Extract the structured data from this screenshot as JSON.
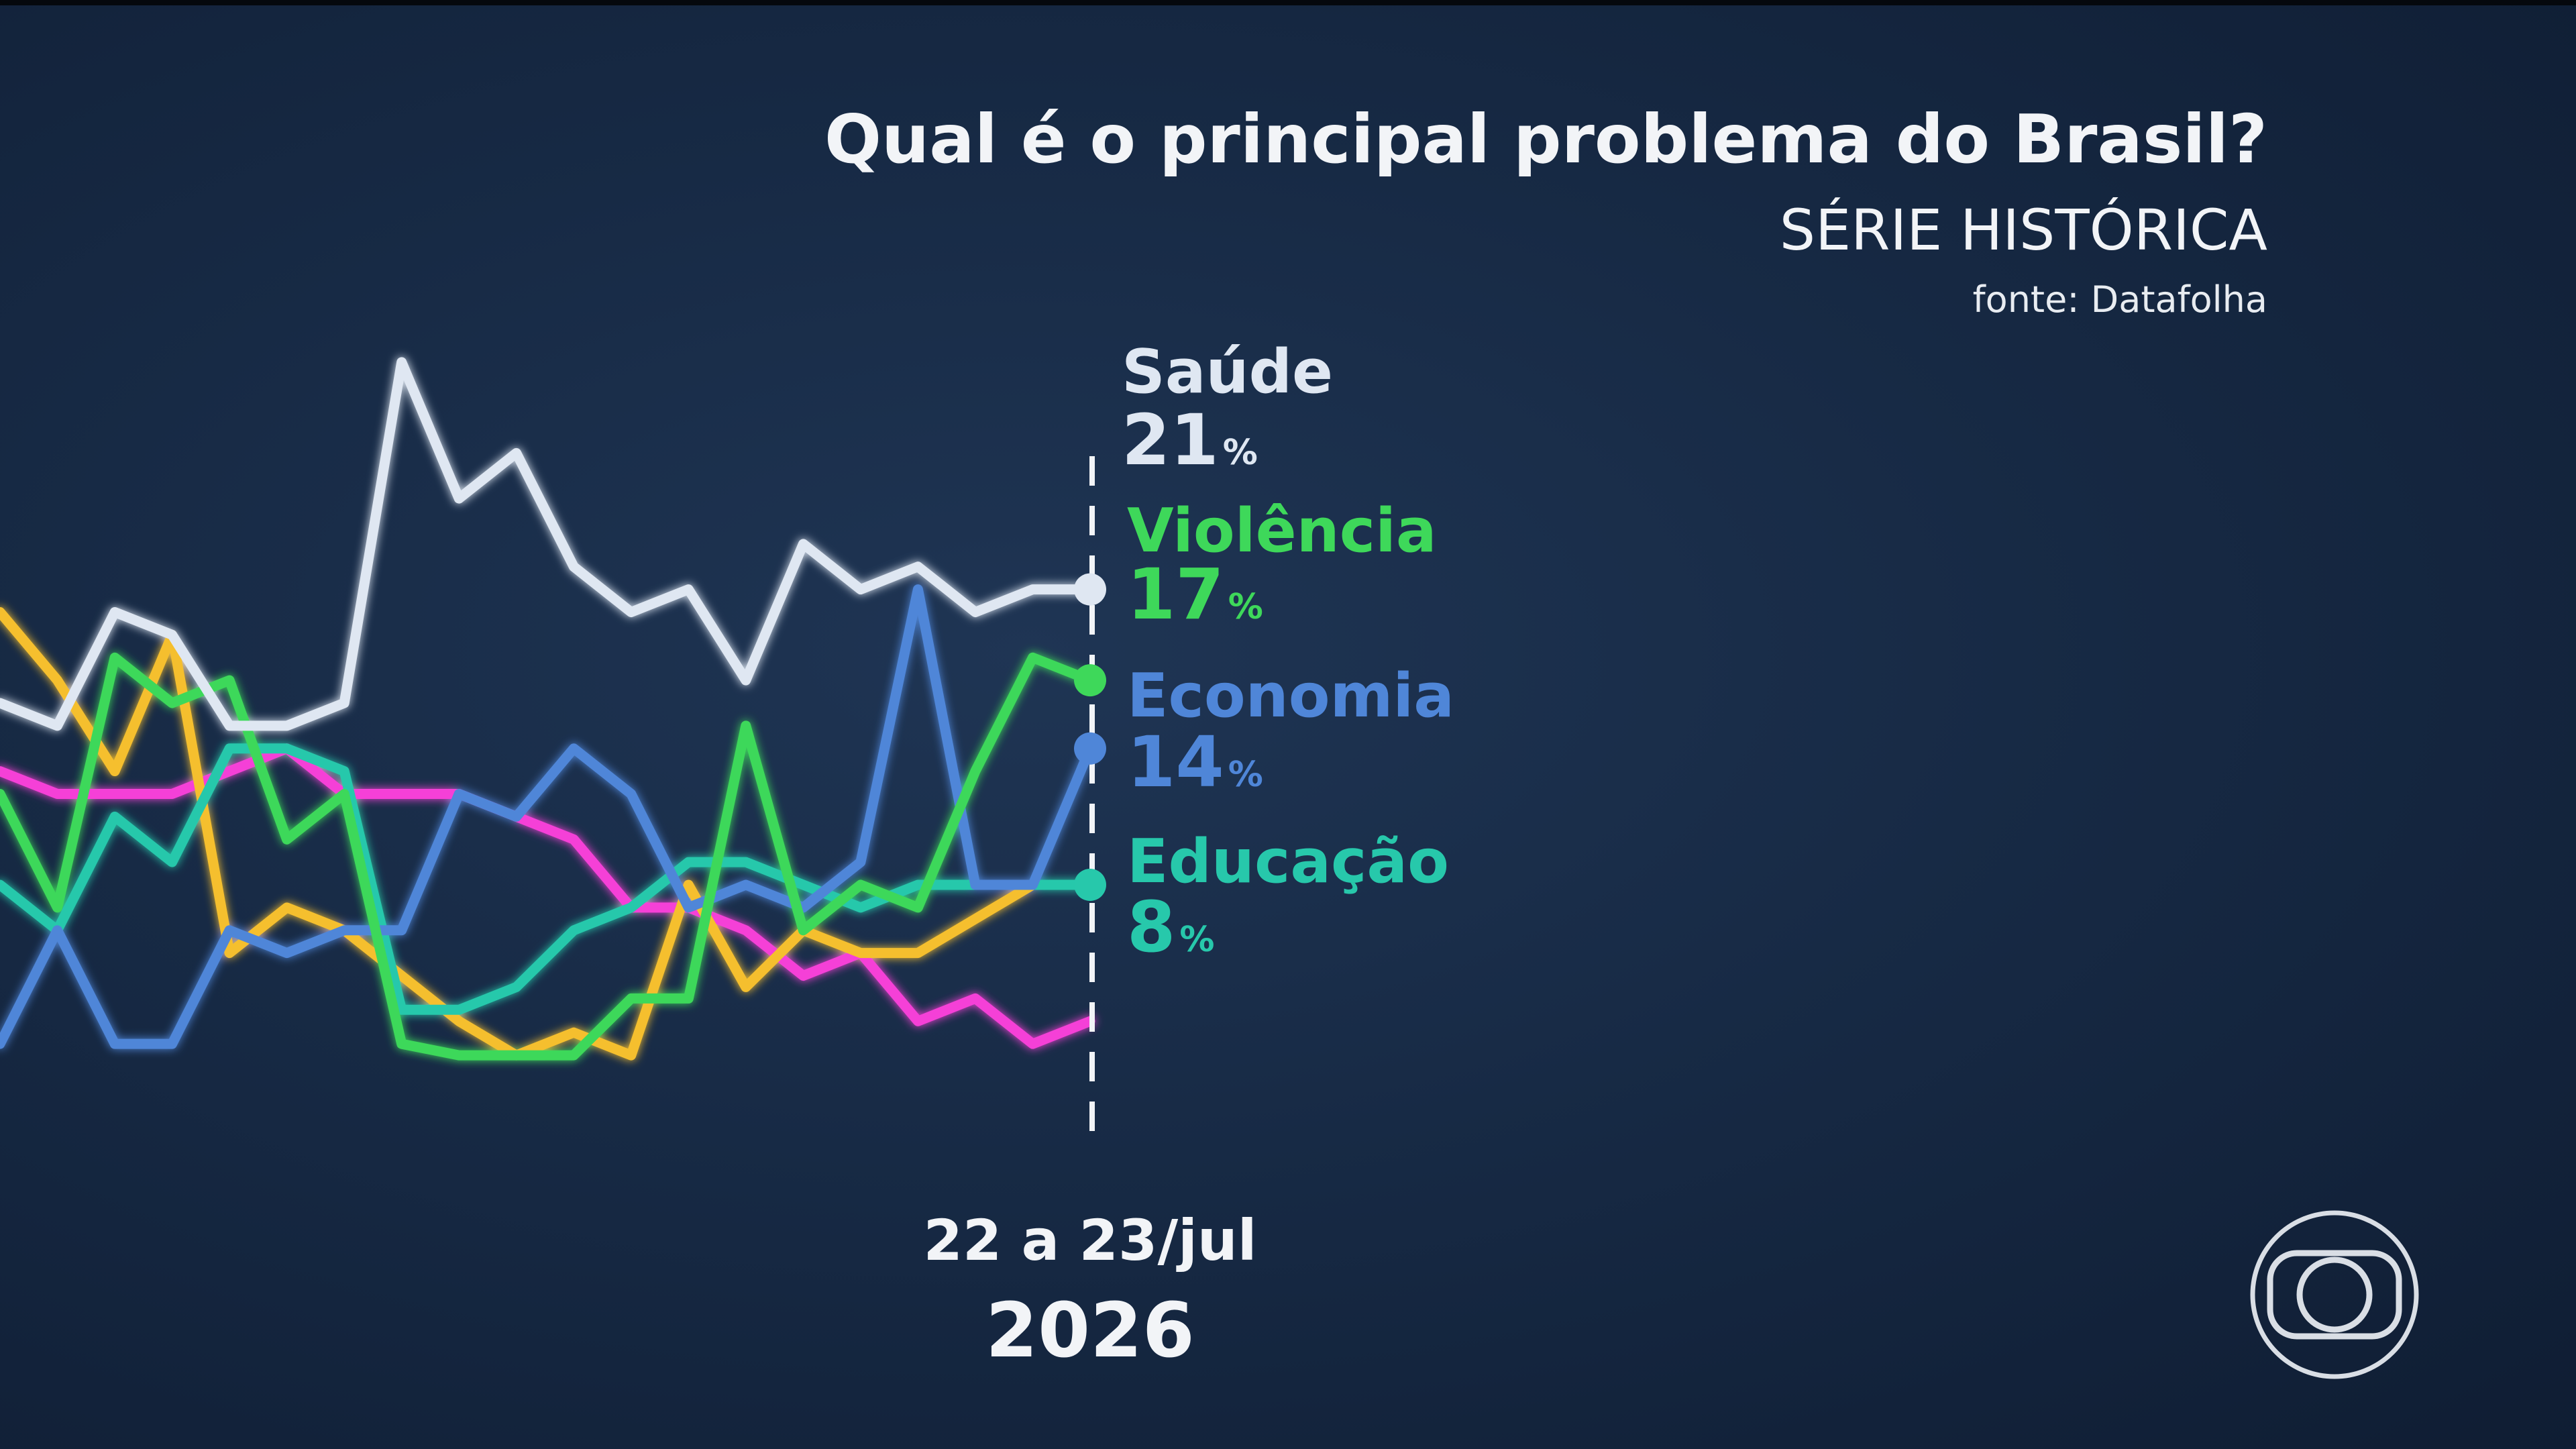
{
  "chart_data": {
    "type": "line",
    "title": "Qual é o principal problema do Brasil?",
    "subtitle": "SÉRIE HISTÓRICA",
    "source": "fonte: Datafolha",
    "xlabel": "",
    "ylabel": "",
    "ylim": [
      0,
      40
    ],
    "grid": false,
    "x_last_label": {
      "date": "22 a 23/jul",
      "year": "2026"
    },
    "series": [
      {
        "name": "Saúde",
        "color": "#dfe7f2",
        "last_value": "21",
        "unit": "%",
        "values": [
          16,
          15,
          20,
          19,
          15,
          15,
          16,
          31,
          25,
          27,
          22,
          20,
          21,
          17,
          23,
          21,
          22,
          20,
          21,
          21
        ]
      },
      {
        "name": "Violência",
        "color": "#3ed85a",
        "last_value": "17",
        "unit": "%",
        "values": [
          12,
          7,
          18,
          16,
          17,
          10,
          12,
          1,
          0.5,
          0.5,
          0.5,
          3,
          3,
          15,
          6,
          8,
          7,
          13,
          18,
          17
        ]
      },
      {
        "name": "Economia",
        "color": "#4f86d8",
        "last_value": "14",
        "unit": "%",
        "values": [
          1,
          6,
          1,
          1,
          6,
          5,
          6,
          6,
          12,
          11,
          14,
          12,
          7,
          8,
          7,
          9,
          21,
          8,
          8,
          14
        ]
      },
      {
        "name": "Educação",
        "color": "#27c8ab",
        "last_value": "8",
        "unit": "%",
        "values": [
          8,
          6,
          11,
          9,
          14,
          14,
          13,
          2.5,
          2.5,
          3.5,
          6,
          7,
          9,
          9,
          8,
          7,
          8,
          8,
          8,
          8
        ]
      },
      {
        "name": "",
        "color": "#f5bf2e",
        "last_value": "",
        "unit": "",
        "values": [
          20,
          17,
          13,
          19,
          5,
          7,
          6,
          4,
          2,
          0.5,
          1.5,
          0.5,
          8,
          3.5,
          6,
          5,
          5,
          6.5,
          8,
          8
        ]
      },
      {
        "name": "",
        "color": "#f53fd7",
        "last_value": "",
        "unit": "",
        "values": [
          13,
          12,
          12,
          12,
          13,
          14,
          12,
          12,
          12,
          11,
          10,
          7,
          7,
          6,
          4,
          5,
          2,
          3,
          1,
          2
        ]
      }
    ]
  }
}
